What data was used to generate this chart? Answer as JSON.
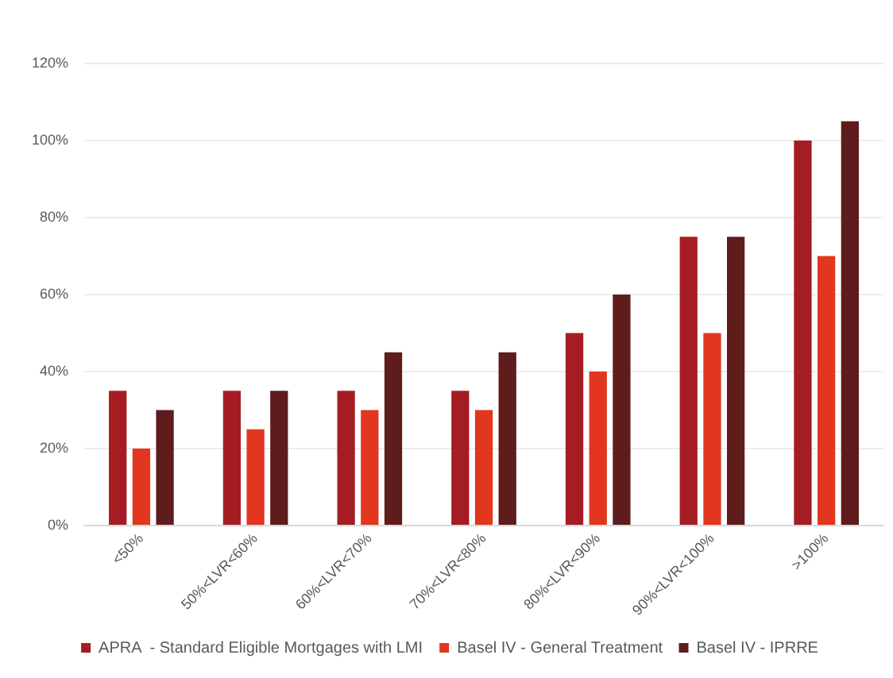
{
  "chart_data": {
    "type": "bar",
    "categories": [
      "<50%",
      "50%<LVR<60%",
      "60%<LVR<70%",
      "70%<LVR<80%",
      "80%<LVR<90%",
      "90%<LVR<100%",
      ">100%"
    ],
    "series": [
      {
        "name": "APRA  - Standard Eligible Mortgages with LMI",
        "color": "#a51d22",
        "values": [
          35,
          35,
          35,
          35,
          50,
          75,
          100
        ]
      },
      {
        "name": "Basel IV - General Treatment",
        "color": "#e2361f",
        "values": [
          20,
          25,
          30,
          30,
          40,
          50,
          70
        ]
      },
      {
        "name": "Basel IV - IPRRE",
        "color": "#5e1c1c",
        "values": [
          30,
          35,
          45,
          45,
          60,
          75,
          105
        ]
      }
    ],
    "ylim": [
      0,
      120
    ],
    "yticks": [
      {
        "value": 0,
        "label": "0%"
      },
      {
        "value": 20,
        "label": "20%"
      },
      {
        "value": 40,
        "label": "40%"
      },
      {
        "value": 60,
        "label": "60%"
      },
      {
        "value": 80,
        "label": "80%"
      },
      {
        "value": 100,
        "label": "100%"
      },
      {
        "value": 120,
        "label": "120%"
      }
    ],
    "grid": "y",
    "legend": "bottom"
  }
}
